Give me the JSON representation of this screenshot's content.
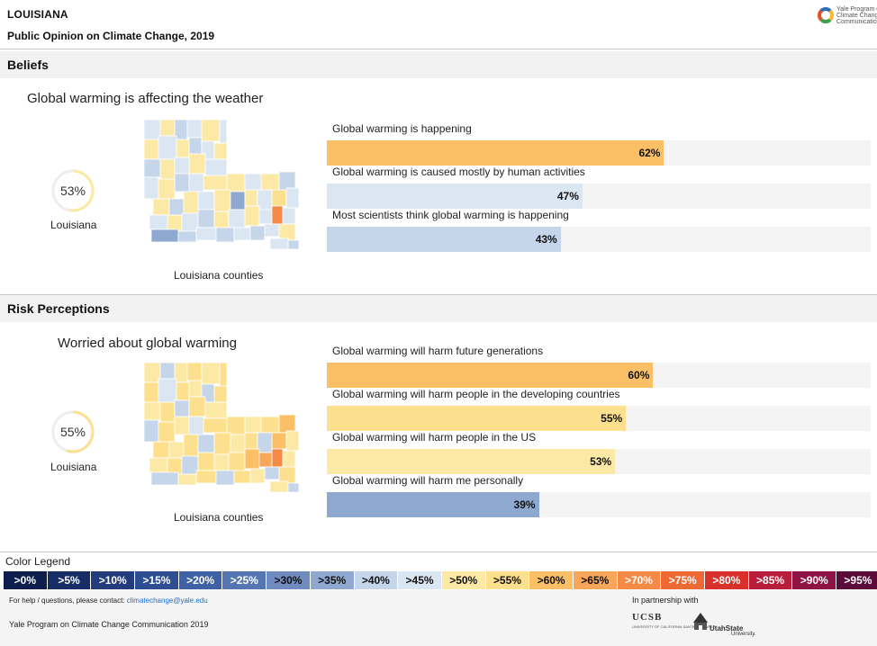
{
  "header": {
    "state": "LOUISIANA",
    "subtitle": "Public Opinion on Climate Change, 2019",
    "logo_text": "Yale Program on\nClimate Change\nCommunication"
  },
  "colors": {
    "p40": "#dbe6f3",
    "p45": "#c5d5ea",
    "p35": "#8ea8cf",
    "p50": "#fde9a6",
    "p55": "#fde08e",
    "p60": "#fbc066",
    "p65": "#f8a65a",
    "p70": "#f48a45"
  },
  "sections": [
    {
      "title": "Beliefs",
      "map_title": "Global warming is affecting the weather",
      "state_value": "53%",
      "state_fraction": 0.53,
      "state_label": "Louisiana",
      "map_caption": "Louisiana counties"
    },
    {
      "title": "Risk Perceptions",
      "map_title": "Worried about global warming",
      "state_value": "55%",
      "state_fraction": 0.55,
      "state_label": "Louisiana",
      "map_caption": "Louisiana counties"
    }
  ],
  "chart_data": [
    {
      "type": "bar",
      "categories": [
        "Global warming is happening",
        "Global warming is caused mostly by human activities",
        "Most scientists think global warming is happening"
      ],
      "values": [
        62,
        47,
        43
      ],
      "value_labels": [
        "62%",
        "47%",
        "43%"
      ],
      "bar_colors": [
        "#fbc066",
        "#dbe6f3",
        "#c5d5ea"
      ],
      "xlim": [
        0,
        100
      ]
    },
    {
      "type": "bar",
      "categories": [
        "Global warming will harm future generations",
        "Global warming will harm people in the developing countries",
        "Global warming will harm people in the US",
        "Global warming will harm me personally"
      ],
      "values": [
        60,
        55,
        53,
        39
      ],
      "value_labels": [
        "60%",
        "55%",
        "53%",
        "39%"
      ],
      "bar_colors": [
        "#fbc066",
        "#fde08e",
        "#fde9a6",
        "#8ea8cf"
      ],
      "xlim": [
        0,
        100
      ]
    }
  ],
  "legend": {
    "title": "Color Legend",
    "items": [
      {
        "label": ">0%",
        "color": "#0e1f4f",
        "text": "#ffffff"
      },
      {
        "label": ">5%",
        "color": "#182d66",
        "text": "#ffffff"
      },
      {
        "label": ">10%",
        "color": "#223c7c",
        "text": "#ffffff"
      },
      {
        "label": ">15%",
        "color": "#2e4e91",
        "text": "#ffffff"
      },
      {
        "label": ">20%",
        "color": "#3e62a5",
        "text": "#ffffff"
      },
      {
        "label": ">25%",
        "color": "#5676b3",
        "text": "#ffffff"
      },
      {
        "label": ">30%",
        "color": "#6f8bc0",
        "text": "#111111"
      },
      {
        "label": ">35%",
        "color": "#8ea8cf",
        "text": "#111111"
      },
      {
        "label": ">40%",
        "color": "#c5d5ea",
        "text": "#111111"
      },
      {
        "label": ">45%",
        "color": "#dbe6f3",
        "text": "#111111"
      },
      {
        "label": ">50%",
        "color": "#fde9a6",
        "text": "#111111"
      },
      {
        "label": ">55%",
        "color": "#fde08e",
        "text": "#111111"
      },
      {
        "label": ">60%",
        "color": "#fbc066",
        "text": "#111111"
      },
      {
        "label": ">65%",
        "color": "#f8a65a",
        "text": "#111111"
      },
      {
        "label": ">70%",
        "color": "#f48a45",
        "text": "#ffffff"
      },
      {
        "label": ">75%",
        "color": "#ee6a35",
        "text": "#ffffff"
      },
      {
        "label": ">80%",
        "color": "#d9302b",
        "text": "#ffffff"
      },
      {
        "label": ">85%",
        "color": "#b81e3c",
        "text": "#ffffff"
      },
      {
        "label": ">90%",
        "color": "#8e1446",
        "text": "#ffffff"
      },
      {
        "label": ">95%",
        "color": "#5c0c3b",
        "text": "#ffffff"
      }
    ]
  },
  "footer": {
    "help_text": "For help / questions, please contact: ",
    "help_email": "climatechange@yale.edu",
    "credit": "Yale Program on Climate Change Communication 2019",
    "partner_label": "In partnership with",
    "ucsb": "UCSB",
    "ucsb_sub": "UNIVERSITY OF CALIFORNIA SANTA BARBARA",
    "usu": "UtahState",
    "usu_sub": "University."
  }
}
